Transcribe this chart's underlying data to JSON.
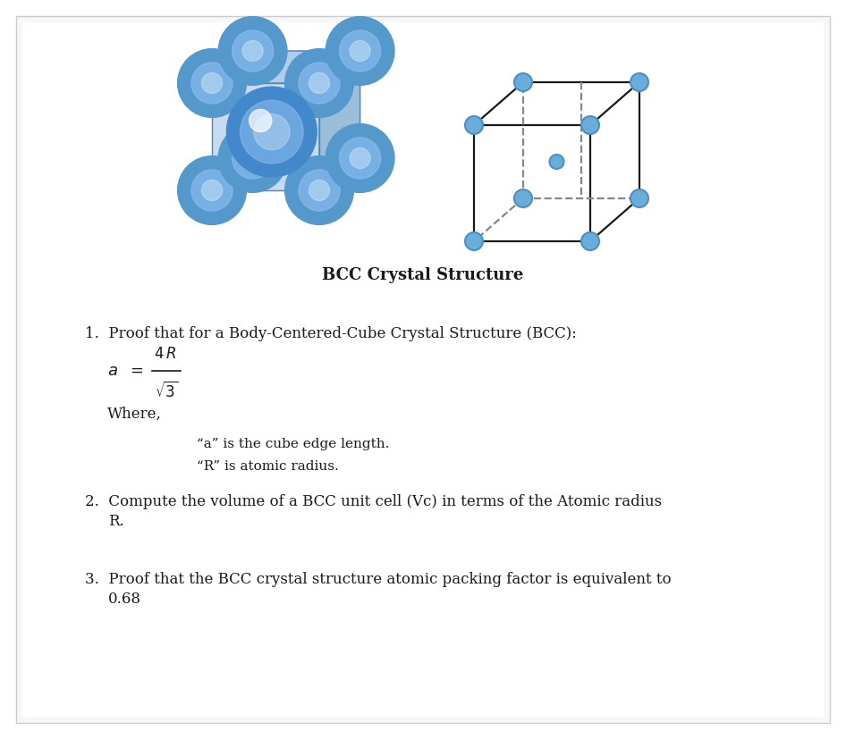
{
  "title": "BCC Crystal Structure",
  "title_fontsize": 13,
  "page_bg": "#ffffff",
  "atom_color": "#6aaddb",
  "atom_edge_color": "#4a90c4",
  "cube_line_color": "#1a1a1a",
  "dashed_line_color": "#888888",
  "text_color": "#1a1a1a",
  "def_a": "“a” is the cube edge length.",
  "def_r": "“R” is atomic radius.",
  "text_fontsize": 12,
  "small_fontsize": 11,
  "fig_width": 9.46,
  "fig_height": 8.27,
  "dpi": 100
}
